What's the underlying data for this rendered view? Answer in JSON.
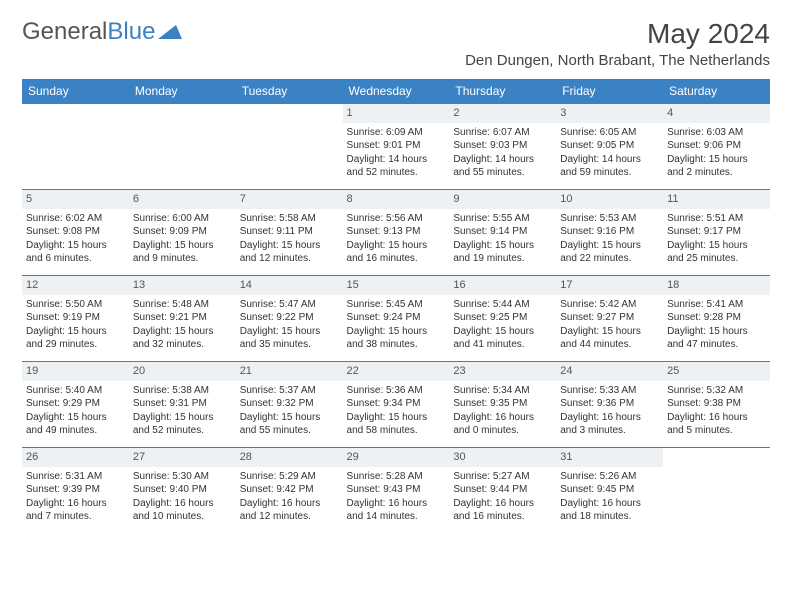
{
  "logo": {
    "text1": "General",
    "text2": "Blue"
  },
  "title": "May 2024",
  "location": "Den Dungen, North Brabant, The Netherlands",
  "theme": {
    "header_bg": "#3b82c4",
    "header_text": "#ffffff",
    "daynum_bg": "#eef1f3",
    "border_color": "#3b82c4",
    "body_text": "#333333"
  },
  "day_headers": [
    "Sunday",
    "Monday",
    "Tuesday",
    "Wednesday",
    "Thursday",
    "Friday",
    "Saturday"
  ],
  "weeks": [
    [
      {
        "n": "",
        "sr": "",
        "ss": "",
        "dl": ""
      },
      {
        "n": "",
        "sr": "",
        "ss": "",
        "dl": ""
      },
      {
        "n": "",
        "sr": "",
        "ss": "",
        "dl": ""
      },
      {
        "n": "1",
        "sr": "Sunrise: 6:09 AM",
        "ss": "Sunset: 9:01 PM",
        "dl": "Daylight: 14 hours and 52 minutes."
      },
      {
        "n": "2",
        "sr": "Sunrise: 6:07 AM",
        "ss": "Sunset: 9:03 PM",
        "dl": "Daylight: 14 hours and 55 minutes."
      },
      {
        "n": "3",
        "sr": "Sunrise: 6:05 AM",
        "ss": "Sunset: 9:05 PM",
        "dl": "Daylight: 14 hours and 59 minutes."
      },
      {
        "n": "4",
        "sr": "Sunrise: 6:03 AM",
        "ss": "Sunset: 9:06 PM",
        "dl": "Daylight: 15 hours and 2 minutes."
      }
    ],
    [
      {
        "n": "5",
        "sr": "Sunrise: 6:02 AM",
        "ss": "Sunset: 9:08 PM",
        "dl": "Daylight: 15 hours and 6 minutes."
      },
      {
        "n": "6",
        "sr": "Sunrise: 6:00 AM",
        "ss": "Sunset: 9:09 PM",
        "dl": "Daylight: 15 hours and 9 minutes."
      },
      {
        "n": "7",
        "sr": "Sunrise: 5:58 AM",
        "ss": "Sunset: 9:11 PM",
        "dl": "Daylight: 15 hours and 12 minutes."
      },
      {
        "n": "8",
        "sr": "Sunrise: 5:56 AM",
        "ss": "Sunset: 9:13 PM",
        "dl": "Daylight: 15 hours and 16 minutes."
      },
      {
        "n": "9",
        "sr": "Sunrise: 5:55 AM",
        "ss": "Sunset: 9:14 PM",
        "dl": "Daylight: 15 hours and 19 minutes."
      },
      {
        "n": "10",
        "sr": "Sunrise: 5:53 AM",
        "ss": "Sunset: 9:16 PM",
        "dl": "Daylight: 15 hours and 22 minutes."
      },
      {
        "n": "11",
        "sr": "Sunrise: 5:51 AM",
        "ss": "Sunset: 9:17 PM",
        "dl": "Daylight: 15 hours and 25 minutes."
      }
    ],
    [
      {
        "n": "12",
        "sr": "Sunrise: 5:50 AM",
        "ss": "Sunset: 9:19 PM",
        "dl": "Daylight: 15 hours and 29 minutes."
      },
      {
        "n": "13",
        "sr": "Sunrise: 5:48 AM",
        "ss": "Sunset: 9:21 PM",
        "dl": "Daylight: 15 hours and 32 minutes."
      },
      {
        "n": "14",
        "sr": "Sunrise: 5:47 AM",
        "ss": "Sunset: 9:22 PM",
        "dl": "Daylight: 15 hours and 35 minutes."
      },
      {
        "n": "15",
        "sr": "Sunrise: 5:45 AM",
        "ss": "Sunset: 9:24 PM",
        "dl": "Daylight: 15 hours and 38 minutes."
      },
      {
        "n": "16",
        "sr": "Sunrise: 5:44 AM",
        "ss": "Sunset: 9:25 PM",
        "dl": "Daylight: 15 hours and 41 minutes."
      },
      {
        "n": "17",
        "sr": "Sunrise: 5:42 AM",
        "ss": "Sunset: 9:27 PM",
        "dl": "Daylight: 15 hours and 44 minutes."
      },
      {
        "n": "18",
        "sr": "Sunrise: 5:41 AM",
        "ss": "Sunset: 9:28 PM",
        "dl": "Daylight: 15 hours and 47 minutes."
      }
    ],
    [
      {
        "n": "19",
        "sr": "Sunrise: 5:40 AM",
        "ss": "Sunset: 9:29 PM",
        "dl": "Daylight: 15 hours and 49 minutes."
      },
      {
        "n": "20",
        "sr": "Sunrise: 5:38 AM",
        "ss": "Sunset: 9:31 PM",
        "dl": "Daylight: 15 hours and 52 minutes."
      },
      {
        "n": "21",
        "sr": "Sunrise: 5:37 AM",
        "ss": "Sunset: 9:32 PM",
        "dl": "Daylight: 15 hours and 55 minutes."
      },
      {
        "n": "22",
        "sr": "Sunrise: 5:36 AM",
        "ss": "Sunset: 9:34 PM",
        "dl": "Daylight: 15 hours and 58 minutes."
      },
      {
        "n": "23",
        "sr": "Sunrise: 5:34 AM",
        "ss": "Sunset: 9:35 PM",
        "dl": "Daylight: 16 hours and 0 minutes."
      },
      {
        "n": "24",
        "sr": "Sunrise: 5:33 AM",
        "ss": "Sunset: 9:36 PM",
        "dl": "Daylight: 16 hours and 3 minutes."
      },
      {
        "n": "25",
        "sr": "Sunrise: 5:32 AM",
        "ss": "Sunset: 9:38 PM",
        "dl": "Daylight: 16 hours and 5 minutes."
      }
    ],
    [
      {
        "n": "26",
        "sr": "Sunrise: 5:31 AM",
        "ss": "Sunset: 9:39 PM",
        "dl": "Daylight: 16 hours and 7 minutes."
      },
      {
        "n": "27",
        "sr": "Sunrise: 5:30 AM",
        "ss": "Sunset: 9:40 PM",
        "dl": "Daylight: 16 hours and 10 minutes."
      },
      {
        "n": "28",
        "sr": "Sunrise: 5:29 AM",
        "ss": "Sunset: 9:42 PM",
        "dl": "Daylight: 16 hours and 12 minutes."
      },
      {
        "n": "29",
        "sr": "Sunrise: 5:28 AM",
        "ss": "Sunset: 9:43 PM",
        "dl": "Daylight: 16 hours and 14 minutes."
      },
      {
        "n": "30",
        "sr": "Sunrise: 5:27 AM",
        "ss": "Sunset: 9:44 PM",
        "dl": "Daylight: 16 hours and 16 minutes."
      },
      {
        "n": "31",
        "sr": "Sunrise: 5:26 AM",
        "ss": "Sunset: 9:45 PM",
        "dl": "Daylight: 16 hours and 18 minutes."
      },
      {
        "n": "",
        "sr": "",
        "ss": "",
        "dl": ""
      }
    ]
  ]
}
